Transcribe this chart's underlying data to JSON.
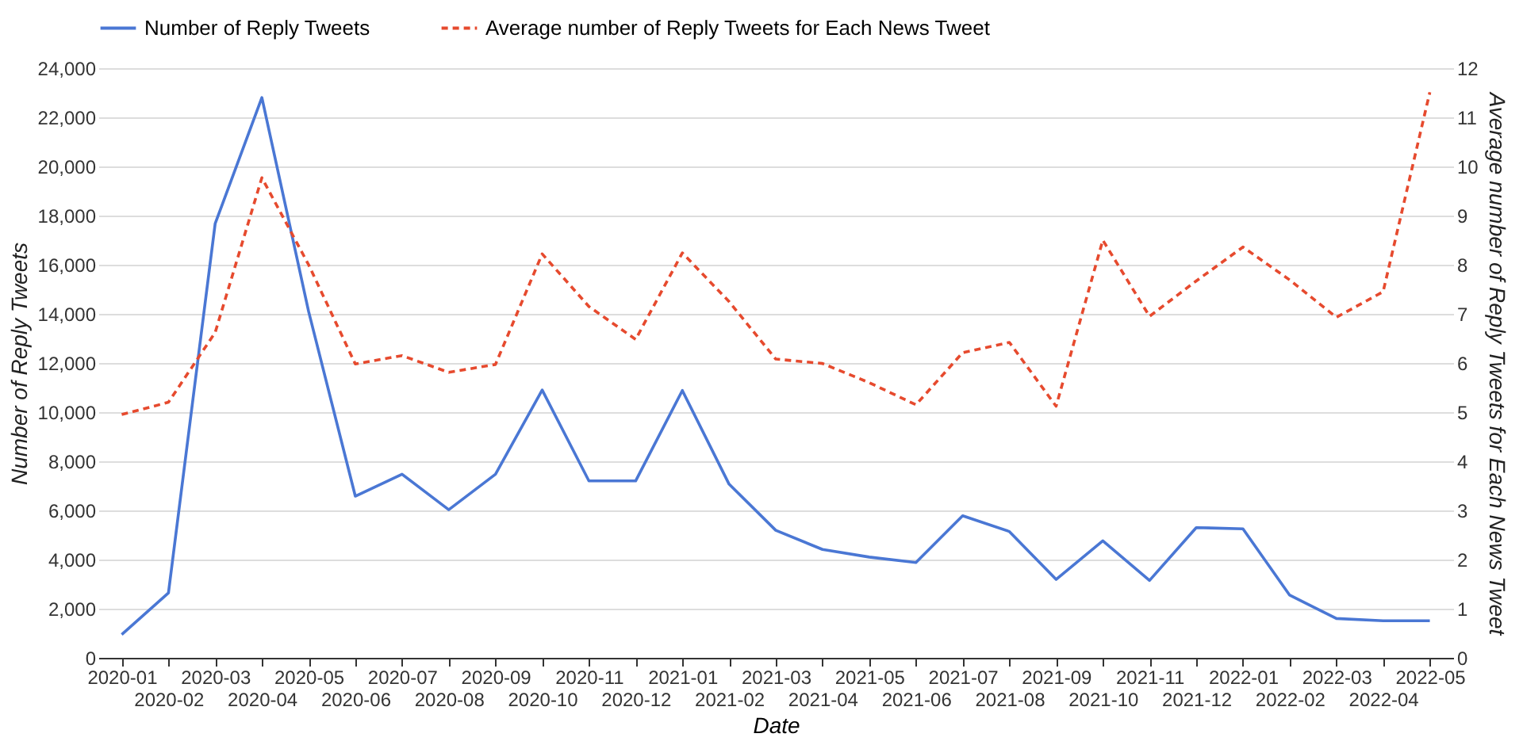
{
  "chart_data": {
    "type": "line",
    "categories": [
      "2020-01",
      "2020-02",
      "2020-03",
      "2020-04",
      "2020-05",
      "2020-06",
      "2020-07",
      "2020-08",
      "2020-09",
      "2020-10",
      "2020-11",
      "2020-12",
      "2021-01",
      "2021-02",
      "2021-03",
      "2021-04",
      "2021-05",
      "2021-06",
      "2021-07",
      "2021-08",
      "2021-09",
      "2021-10",
      "2021-11",
      "2021-12",
      "2022-01",
      "2022-02",
      "2022-03",
      "2022-04",
      "2022-05"
    ],
    "series": [
      {
        "name": "Number of Reply Tweets",
        "color": "#4a77d4",
        "axis": "y",
        "line_style": "solid",
        "values": [
          950,
          2640,
          17670,
          22800,
          14100,
          6580,
          7470,
          6030,
          7470,
          10900,
          7200,
          7200,
          10880,
          7070,
          5190,
          4410,
          4100,
          3880,
          5780,
          5140,
          3190,
          4760,
          3150,
          5300,
          5250,
          2550,
          1600,
          1510,
          1510
        ]
      },
      {
        "name": "Average number of Reply Tweets for Each News Tweet",
        "color": "#e64a2e",
        "axis": "y2",
        "line_style": "dashed",
        "values": [
          4.95,
          5.2,
          6.62,
          9.77,
          8.0,
          5.98,
          6.15,
          5.81,
          5.97,
          8.22,
          7.15,
          6.48,
          8.24,
          7.25,
          6.08,
          5.99,
          5.6,
          5.15,
          6.21,
          6.42,
          5.12,
          8.5,
          6.95,
          7.67,
          8.36,
          7.69,
          6.93,
          7.45,
          11.51
        ]
      }
    ],
    "xlabel": "Date",
    "ylabel": "Number of Reply Tweets",
    "y2label": "Average number of Reply Tweets for Each News Tweet",
    "ylim": [
      0,
      24000
    ],
    "yticks": [
      0,
      {
        "value": 2000,
        "label": "2,000"
      },
      {
        "value": 4000,
        "label": "4,000"
      },
      {
        "value": 6000,
        "label": "6,000"
      },
      {
        "value": 8000,
        "label": "8,000"
      },
      {
        "value": 10000,
        "label": "10,000"
      },
      {
        "value": 12000,
        "label": "12,000"
      },
      {
        "value": 14000,
        "label": "14,000"
      },
      {
        "value": 16000,
        "label": "16,000"
      },
      {
        "value": 18000,
        "label": "18,000"
      },
      {
        "value": 20000,
        "label": "20,000"
      },
      {
        "value": 22000,
        "label": "22,000"
      },
      {
        "value": 24000,
        "label": "24,000"
      }
    ],
    "y2lim": [
      0,
      12
    ],
    "y2ticks": [
      0,
      1,
      2,
      3,
      4,
      5,
      6,
      7,
      8,
      9,
      10,
      11,
      12
    ],
    "grid": "y",
    "legend": "top"
  }
}
